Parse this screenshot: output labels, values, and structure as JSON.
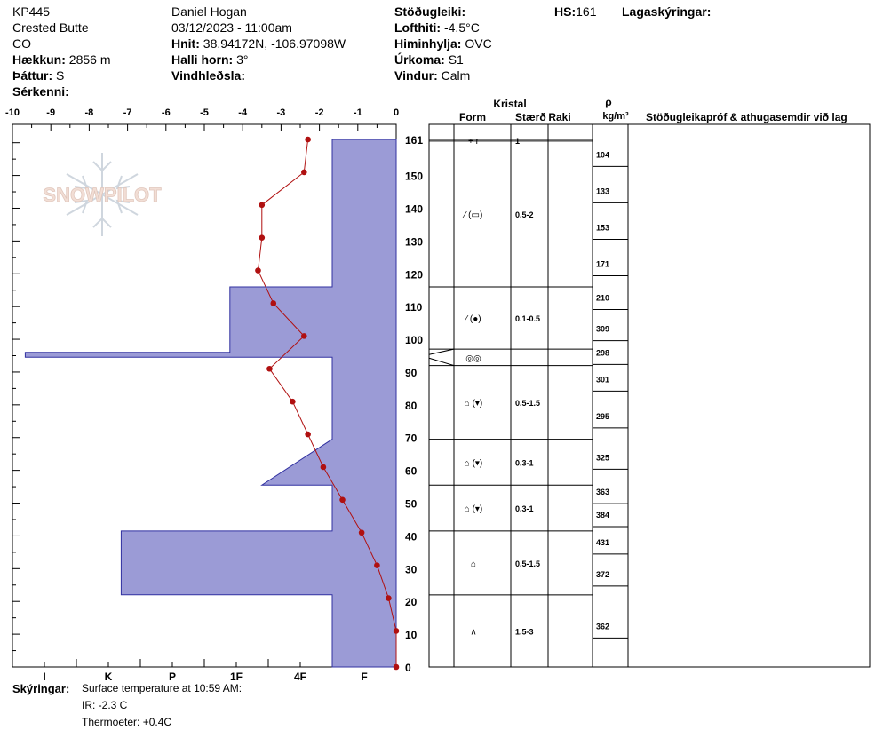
{
  "site": {
    "id": "KP445",
    "name": "Crested Butte",
    "state": "CO",
    "elevation_label": "Hækkun:",
    "elevation": "2856 m",
    "aspect_label": "Þáttur:",
    "aspect": "S",
    "features_label": "Sérkenni:"
  },
  "observer": {
    "name": "Daniel Hogan",
    "datetime": "03/12/2023 - 11:00am",
    "coords_label": "Hnit:",
    "coords": "38.94172N, -106.97098W",
    "slope_label": "Halli horn:",
    "slope": "3°",
    "wind_loading_label": "Vindhleðsla:"
  },
  "weather": {
    "stability_label": "Stöðugleiki:",
    "air_temp_label": "Lofthiti:",
    "air_temp": "-4.5°C",
    "sky_label": "Himinhylja:",
    "sky": "OVC",
    "precip_label": "Úrkoma:",
    "precip": "S1",
    "wind_label": "Vindur:",
    "wind": "Calm"
  },
  "hs": {
    "label": "HS:",
    "value": "161"
  },
  "layer_notes_label": "Lagaskýringar:",
  "columns": {
    "crystal": "Kristal",
    "form": "Form",
    "size": "Stærð",
    "moisture": "Raki",
    "rho": "ρ",
    "density_unit": "kg/m³",
    "tests": "Stöðugleikapróf & athugasemdir við lag"
  },
  "watermark": "SNOWPILOT",
  "notes": {
    "label": "Skýringar:",
    "lines": [
      "Surface temperature at 10:59 AM:",
      "IR: -2.3 C",
      "Thermoeter: +0.4C"
    ]
  },
  "colors": {
    "hardness_fill": "#9b9bd6",
    "hardness_stroke": "#3030a0",
    "temp_line": "#b01010"
  },
  "chart_data": {
    "type": "line",
    "temp_axis": {
      "ticks": [
        "-10",
        "-9",
        "-8",
        "-7",
        "-6",
        "-5",
        "-4",
        "-3",
        "-2",
        "-1",
        "0"
      ],
      "range": [
        -10,
        0
      ]
    },
    "depth_axis": {
      "ticks": [
        "0",
        "10",
        "20",
        "30",
        "40",
        "50",
        "60",
        "70",
        "80",
        "90",
        "100",
        "110",
        "120",
        "130",
        "140",
        "150",
        "161"
      ],
      "range": [
        0,
        161
      ]
    },
    "hardness_axis": {
      "labels": [
        "I",
        "K",
        "P",
        "1F",
        "4F",
        "F"
      ],
      "values": [
        5,
        4,
        3,
        2,
        1,
        0
      ]
    },
    "hardness_profile": [
      {
        "depth": 161,
        "hardness": 1
      },
      {
        "depth": 116,
        "hardness": 1
      },
      {
        "depth": 116,
        "hardness": 2.6
      },
      {
        "depth": 96,
        "hardness": 2.6
      },
      {
        "depth": 96,
        "hardness": 5.8
      },
      {
        "depth": 94.5,
        "hardness": 5.8
      },
      {
        "depth": 94.5,
        "hardness": 1
      },
      {
        "depth": 69.5,
        "hardness": 1
      },
      {
        "depth": 55.5,
        "hardness": 2.1
      },
      {
        "depth": 55.5,
        "hardness": 1
      },
      {
        "depth": 41.5,
        "hardness": 1
      },
      {
        "depth": 41.5,
        "hardness": 4.3
      },
      {
        "depth": 22,
        "hardness": 4.3
      },
      {
        "depth": 22,
        "hardness": 1
      },
      {
        "depth": 0,
        "hardness": 1
      }
    ],
    "temperature_profile": [
      {
        "depth": 161,
        "temp": -2.3
      },
      {
        "depth": 151,
        "temp": -2.4
      },
      {
        "depth": 141,
        "temp": -3.5
      },
      {
        "depth": 131,
        "temp": -3.5
      },
      {
        "depth": 121,
        "temp": -3.6
      },
      {
        "depth": 111,
        "temp": -3.2
      },
      {
        "depth": 101,
        "temp": -2.4
      },
      {
        "depth": 91,
        "temp": -3.3
      },
      {
        "depth": 81,
        "temp": -2.7
      },
      {
        "depth": 71,
        "temp": -2.3
      },
      {
        "depth": 61,
        "temp": -1.9
      },
      {
        "depth": 51,
        "temp": -1.4
      },
      {
        "depth": 41,
        "temp": -0.9
      },
      {
        "depth": 31,
        "temp": -0.5
      },
      {
        "depth": 21,
        "temp": -0.2
      },
      {
        "depth": 11,
        "temp": 0
      },
      {
        "depth": 0,
        "temp": 0
      }
    ]
  },
  "layers": [
    {
      "top": 161,
      "bottom": 160.5,
      "form": "+ r",
      "size": "1",
      "densities": []
    },
    {
      "top": 160.5,
      "bottom": 116,
      "form": "⁄ (▭)",
      "size": "0.5-2",
      "densities": [
        "104",
        "133",
        "153",
        "171"
      ]
    },
    {
      "top": 116,
      "bottom": 97,
      "form": "⁄ (●)",
      "size": "0.1-0.5",
      "densities": [
        "210",
        "309"
      ]
    },
    {
      "top": 97,
      "bottom": 92,
      "form": "◎◎",
      "size": "",
      "densities": [
        "298"
      ]
    },
    {
      "top": 92,
      "bottom": 69.5,
      "form": "⌂ (▾)",
      "size": "0.5-1.5",
      "densities": [
        "301",
        "295"
      ]
    },
    {
      "top": 69.5,
      "bottom": 55.5,
      "form": "⌂ (▾)",
      "size": "0.3-1",
      "densities": [
        "325"
      ]
    },
    {
      "top": 55.5,
      "bottom": 41.5,
      "form": "⌂ (▾)",
      "size": "0.3-1",
      "densities": [
        "363",
        "384"
      ]
    },
    {
      "top": 41.5,
      "bottom": 22,
      "form": "⌂",
      "size": "0.5-1.5",
      "densities": [
        "431",
        "372"
      ]
    },
    {
      "top": 22,
      "bottom": 0,
      "form": "∧",
      "size": "1.5-3",
      "densities": [
        "362"
      ]
    }
  ]
}
